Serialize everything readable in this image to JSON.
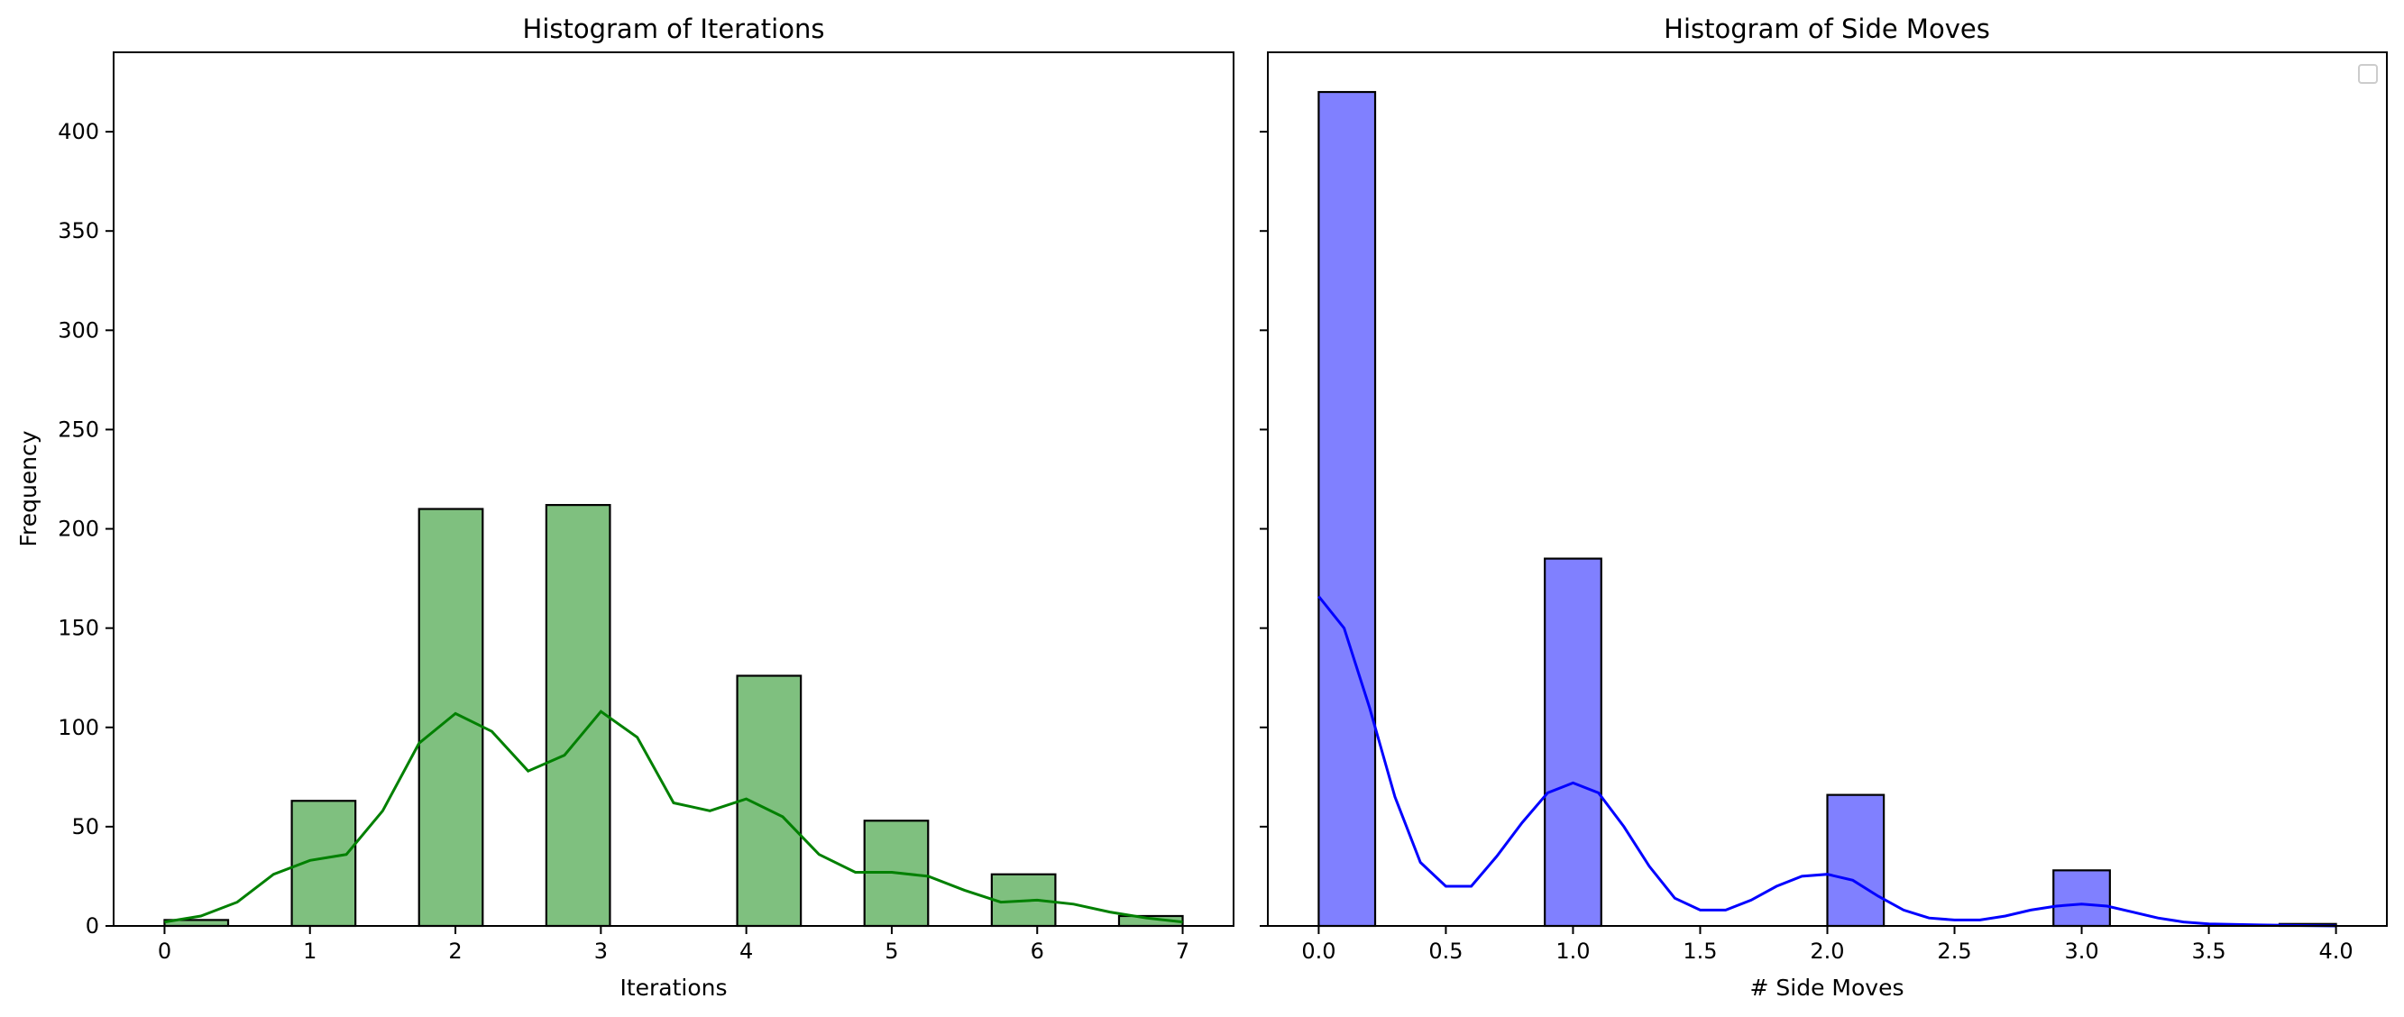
{
  "chart_data": [
    {
      "type": "bar",
      "title": "Histogram of Iterations",
      "xlabel": "Iterations",
      "ylabel": "Frequency",
      "xlim": [
        -0.35,
        7.35
      ],
      "ylim": [
        0,
        440
      ],
      "xticks": [
        0,
        1,
        2,
        3,
        4,
        5,
        6,
        7
      ],
      "xtick_labels": [
        "0",
        "1",
        "2",
        "3",
        "4",
        "5",
        "6",
        "7"
      ],
      "yticks": [
        0,
        50,
        100,
        150,
        200,
        250,
        300,
        350,
        400
      ],
      "ytick_labels": [
        "0",
        "50",
        "100",
        "150",
        "200",
        "250",
        "300",
        "350",
        "400"
      ],
      "bins": [
        {
          "x0": 0.0,
          "x1": 0.4375,
          "value": 3
        },
        {
          "x0": 0.875,
          "x1": 1.3125,
          "value": 63
        },
        {
          "x0": 1.75,
          "x1": 2.1875,
          "value": 210
        },
        {
          "x0": 2.625,
          "x1": 3.0625,
          "value": 212
        },
        {
          "x0": 3.9375,
          "x1": 4.375,
          "value": 126
        },
        {
          "x0": 4.8125,
          "x1": 5.25,
          "value": 53
        },
        {
          "x0": 5.6875,
          "x1": 6.125,
          "value": 26
        },
        {
          "x0": 6.5625,
          "x1": 7.0,
          "value": 5
        }
      ],
      "kde": [
        [
          0,
          2
        ],
        [
          0.25,
          5
        ],
        [
          0.5,
          12
        ],
        [
          0.75,
          26
        ],
        [
          1,
          33
        ],
        [
          1.25,
          36
        ],
        [
          1.5,
          58
        ],
        [
          1.75,
          92
        ],
        [
          2,
          107
        ],
        [
          2.25,
          98
        ],
        [
          2.5,
          78
        ],
        [
          2.75,
          86
        ],
        [
          3,
          108
        ],
        [
          3.25,
          95
        ],
        [
          3.5,
          62
        ],
        [
          3.75,
          58
        ],
        [
          4,
          64
        ],
        [
          4.25,
          55
        ],
        [
          4.5,
          36
        ],
        [
          4.75,
          27
        ],
        [
          5,
          27
        ],
        [
          5.25,
          25
        ],
        [
          5.5,
          18
        ],
        [
          5.75,
          12
        ],
        [
          6,
          13
        ],
        [
          6.25,
          11
        ],
        [
          6.5,
          7
        ],
        [
          6.75,
          4
        ],
        [
          7,
          2
        ]
      ],
      "colors": {
        "bar": "#7fc07f",
        "edge": "#000000",
        "kde": "#008000"
      },
      "grid": false
    },
    {
      "type": "bar",
      "title": "Histogram of Side Moves",
      "xlabel": "# Side Moves",
      "ylabel": "",
      "xlim": [
        -0.2,
        4.2
      ],
      "ylim": [
        0,
        440
      ],
      "xticks": [
        0,
        0.5,
        1,
        1.5,
        2,
        2.5,
        3,
        3.5,
        4
      ],
      "xtick_labels": [
        "0.0",
        "0.5",
        "1.0",
        "1.5",
        "2.0",
        "2.5",
        "3.0",
        "3.5",
        "4.0"
      ],
      "yticks": [
        0,
        50,
        100,
        150,
        200,
        250,
        300,
        350,
        400
      ],
      "ytick_labels": [],
      "bins": [
        {
          "x0": 0.0,
          "x1": 0.222,
          "value": 420
        },
        {
          "x0": 0.889,
          "x1": 1.111,
          "value": 185
        },
        {
          "x0": 2.0,
          "x1": 2.222,
          "value": 66
        },
        {
          "x0": 2.889,
          "x1": 3.111,
          "value": 28
        },
        {
          "x0": 3.778,
          "x1": 4.0,
          "value": 1
        }
      ],
      "kde": [
        [
          0,
          166
        ],
        [
          0.1,
          150
        ],
        [
          0.2,
          110
        ],
        [
          0.3,
          65
        ],
        [
          0.4,
          32
        ],
        [
          0.5,
          20
        ],
        [
          0.6,
          20
        ],
        [
          0.7,
          35
        ],
        [
          0.8,
          52
        ],
        [
          0.9,
          67
        ],
        [
          1,
          72
        ],
        [
          1.1,
          67
        ],
        [
          1.2,
          50
        ],
        [
          1.3,
          30
        ],
        [
          1.4,
          14
        ],
        [
          1.5,
          8
        ],
        [
          1.6,
          8
        ],
        [
          1.7,
          13
        ],
        [
          1.8,
          20
        ],
        [
          1.9,
          25
        ],
        [
          2,
          26
        ],
        [
          2.1,
          23
        ],
        [
          2.2,
          15
        ],
        [
          2.3,
          8
        ],
        [
          2.4,
          4
        ],
        [
          2.5,
          3
        ],
        [
          2.6,
          3
        ],
        [
          2.7,
          5
        ],
        [
          2.8,
          8
        ],
        [
          2.9,
          10
        ],
        [
          3,
          11
        ],
        [
          3.1,
          10
        ],
        [
          3.2,
          7
        ],
        [
          3.3,
          4
        ],
        [
          3.4,
          2
        ],
        [
          3.5,
          1
        ],
        [
          3.7,
          0.5
        ],
        [
          4,
          0
        ]
      ],
      "colors": {
        "bar": "#8080ff",
        "edge": "#000000",
        "kde": "#0000ff"
      },
      "legend": {
        "placement": "top-right",
        "entries": []
      },
      "grid": false
    }
  ]
}
